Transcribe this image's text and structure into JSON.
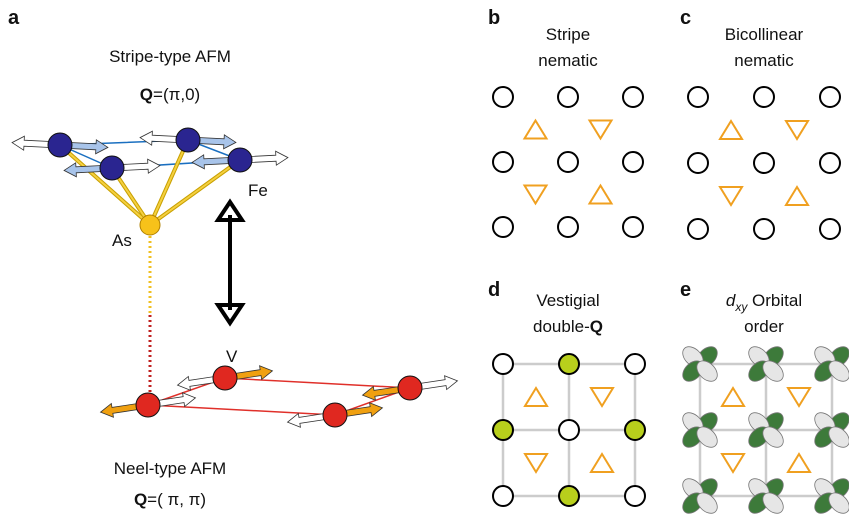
{
  "panels": {
    "a": {
      "label": "a",
      "top_title": "Stripe-type AFM",
      "top_q": {
        "symbol": "Q",
        "text": "=(π,0)"
      },
      "fe": "Fe",
      "as": "As",
      "v": "V",
      "bottom_title": "Neel-type AFM",
      "bottom_q": {
        "symbol": "Q",
        "text": "=( π, π)"
      }
    },
    "b": {
      "label": "b",
      "title": [
        "Stripe",
        "nematic"
      ]
    },
    "c": {
      "label": "c",
      "title": [
        "Bicollinear",
        "nematic"
      ]
    },
    "d": {
      "label": "d",
      "title_line1": "Vestigial",
      "title_line2": "double-",
      "title_symbol": "Q"
    },
    "e": {
      "label": "e",
      "title_symbol": "d",
      "title_subscript": "xy",
      "title_rest": " Orbital",
      "title_line2": "order"
    }
  }
}
